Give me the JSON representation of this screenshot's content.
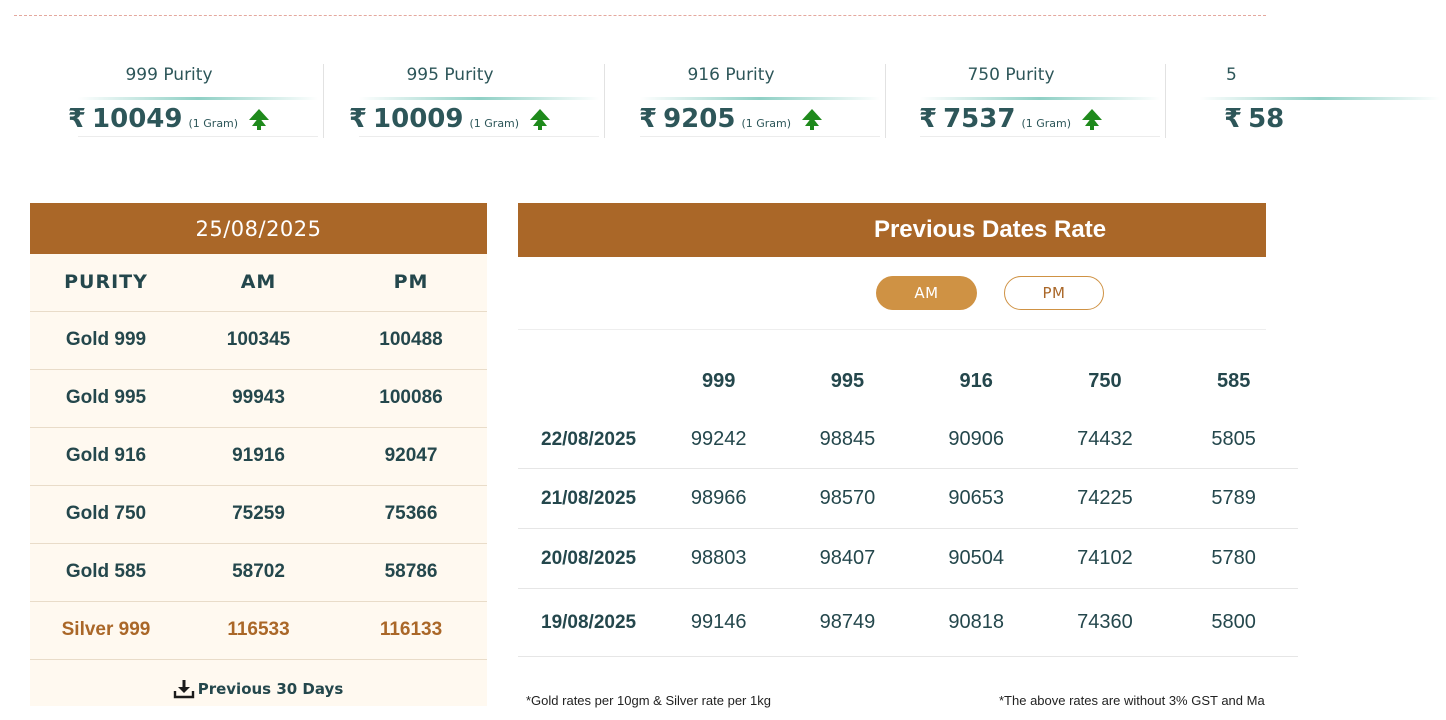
{
  "ticker": [
    {
      "label": "999 Purity",
      "rupee": "₹",
      "amount": "10049",
      "unit": "(1 Gram)",
      "trend": "up-arrow-icon"
    },
    {
      "label": "995 Purity",
      "rupee": "₹",
      "amount": "10009",
      "unit": "(1 Gram)",
      "trend": "up-arrow-icon"
    },
    {
      "label": "916 Purity",
      "rupee": "₹",
      "amount": "9205",
      "unit": "(1 Gram)",
      "trend": "up-arrow-icon"
    },
    {
      "label": "750 Purity",
      "rupee": "₹",
      "amount": "7537",
      "unit": "(1 Gram)",
      "trend": "up-arrow-icon"
    },
    {
      "label": "5",
      "rupee": "₹",
      "amount": "58",
      "unit": "",
      "trend": ""
    }
  ],
  "today": {
    "date": "25/08/2025",
    "headers": [
      "PURITY",
      "AM",
      "PM"
    ],
    "rows": [
      {
        "purity": "Gold 999",
        "am": "100345",
        "pm": "100488"
      },
      {
        "purity": "Gold 995",
        "am": "99943",
        "pm": "100086"
      },
      {
        "purity": "Gold 916",
        "am": "91916",
        "pm": "92047"
      },
      {
        "purity": "Gold 750",
        "am": "75259",
        "pm": "75366"
      },
      {
        "purity": "Gold 585",
        "am": "58702",
        "pm": "58786"
      },
      {
        "purity": "Silver 999",
        "am": "116533",
        "pm": "116133"
      }
    ],
    "previous_link": "Previous 30 Days"
  },
  "previous": {
    "title": "Previous Dates Rate",
    "toggle_am": "AM",
    "toggle_pm": "PM",
    "headers": [
      "999",
      "995",
      "916",
      "750",
      "585"
    ],
    "rows": [
      {
        "date": "22/08/2025",
        "values": [
          "99242",
          "98845",
          "90906",
          "74432",
          "5805"
        ]
      },
      {
        "date": "21/08/2025",
        "values": [
          "98966",
          "98570",
          "90653",
          "74225",
          "5789"
        ]
      },
      {
        "date": "20/08/2025",
        "values": [
          "98803",
          "98407",
          "90504",
          "74102",
          "5780"
        ]
      },
      {
        "date": "19/08/2025",
        "values": [
          "99146",
          "98749",
          "90818",
          "74360",
          "5800"
        ]
      }
    ]
  },
  "footnotes": {
    "left": "*Gold rates per 10gm & Silver rate per 1kg",
    "right": "*The above rates are without 3% GST and Ma"
  },
  "colors": {
    "brand_brown": "#aa6728",
    "accent_gold": "#cf9244",
    "text_teal": "#24474c",
    "trend_up_green": "#1f8a1c",
    "table_bg": "#fff9f0"
  }
}
